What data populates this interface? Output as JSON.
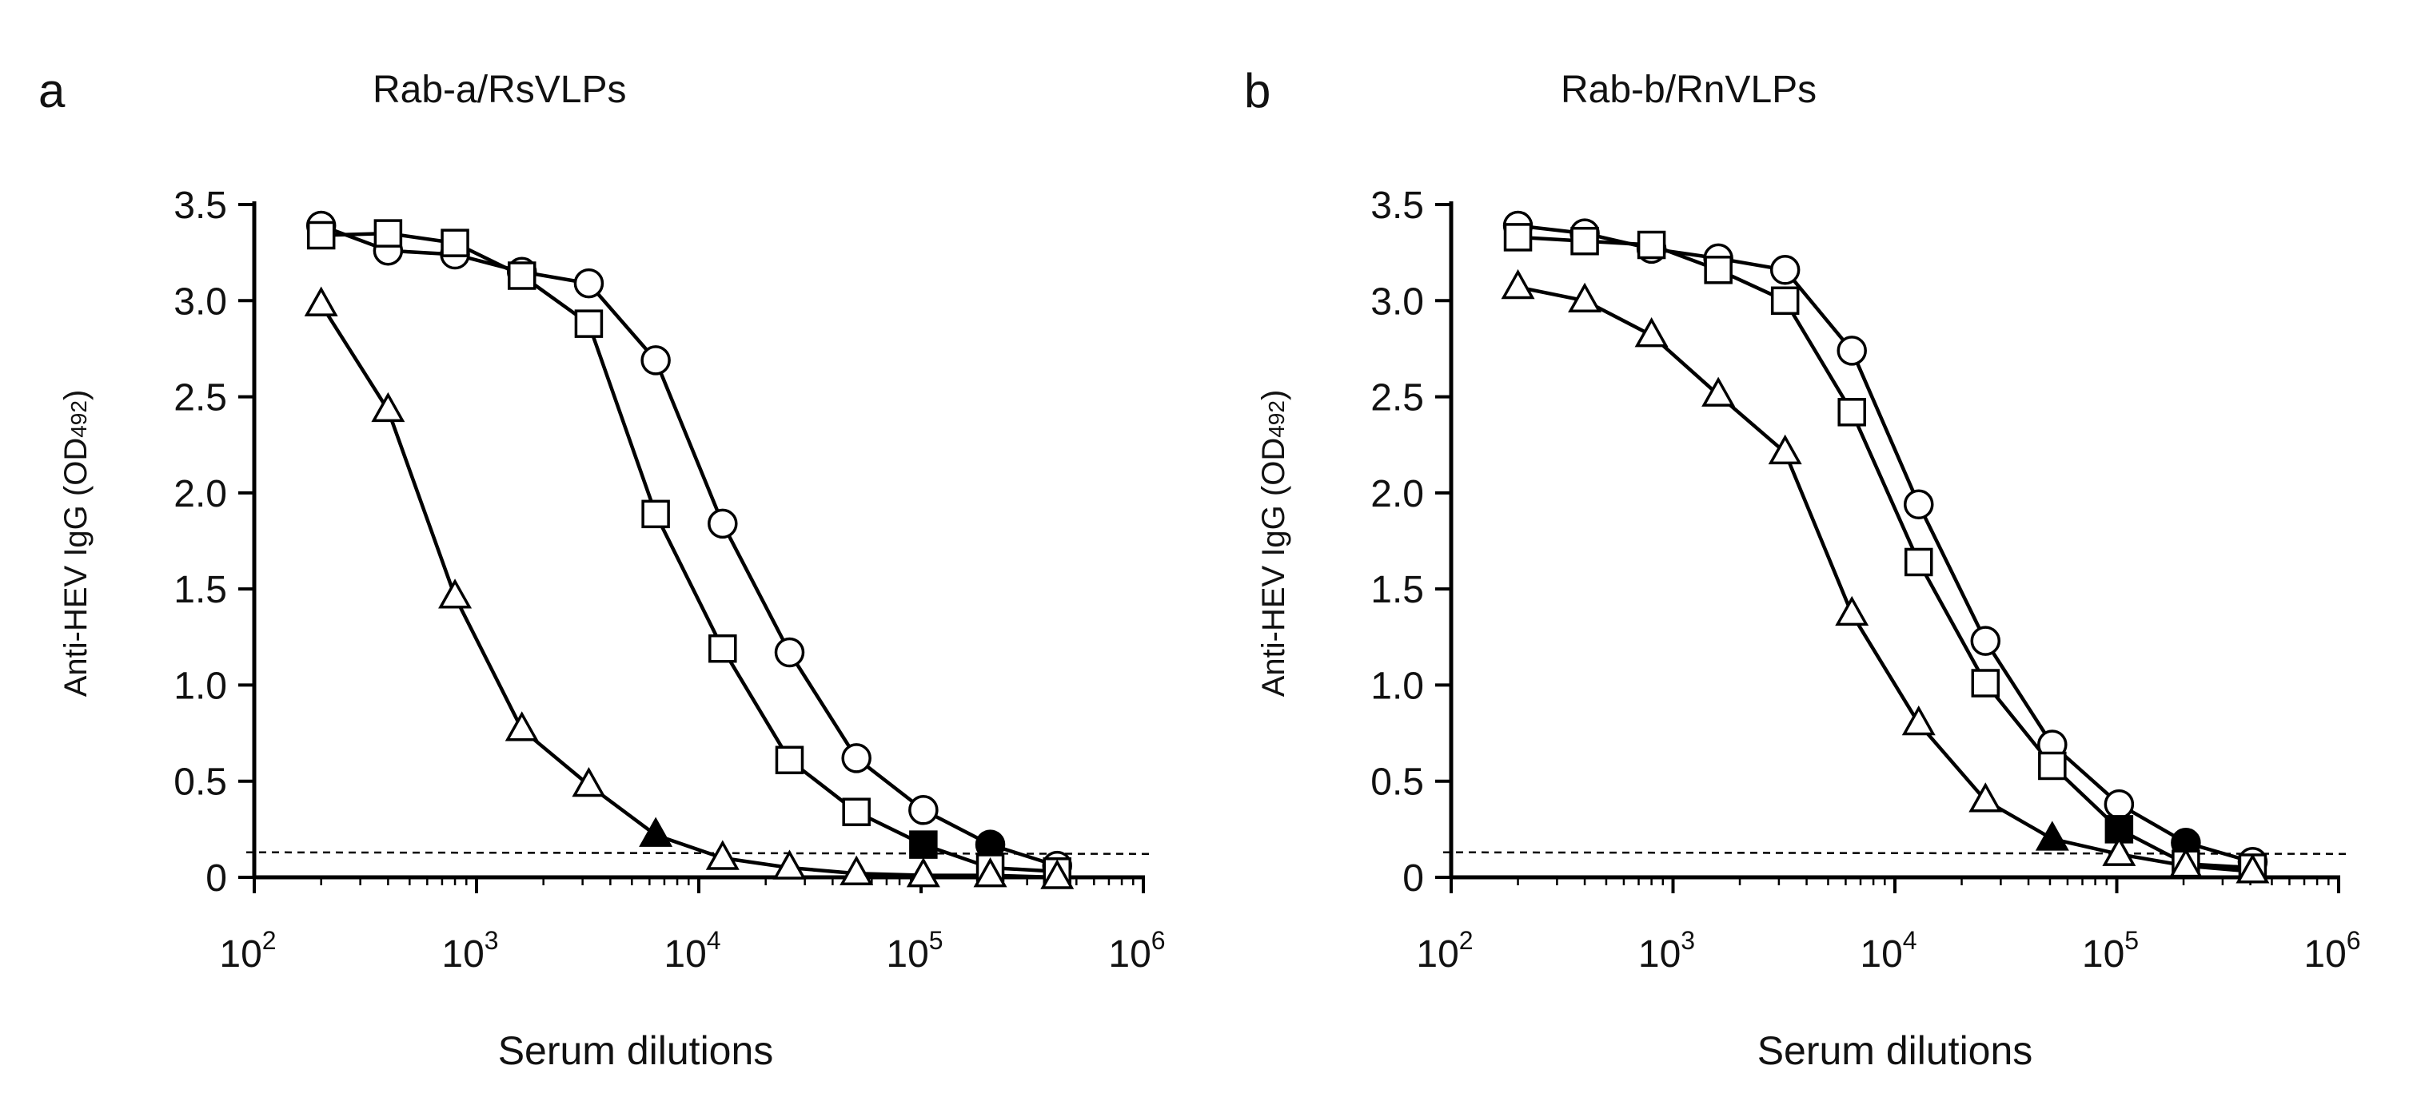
{
  "chart_data": [
    {
      "panel_label": "a",
      "title": "Rab-a/RsVLPs",
      "type": "line",
      "xscale": "log",
      "xlabel": "Serum dilutions",
      "ylabel_main": "Anti-HEV IgG (OD",
      "ylabel_sub": "492",
      "ylabel_close": ")",
      "xlim": [
        100,
        1000000
      ],
      "ylim": [
        0,
        3.5
      ],
      "yticks": [
        {
          "value": 0,
          "label": "0"
        },
        {
          "value": 0.5,
          "label": "0.5"
        },
        {
          "value": 1.0,
          "label": "1.0"
        },
        {
          "value": 1.5,
          "label": "1.5"
        },
        {
          "value": 2.0,
          "label": "2.0"
        },
        {
          "value": 2.5,
          "label": "2.5"
        },
        {
          "value": 3.0,
          "label": "3.0"
        },
        {
          "value": 3.5,
          "label": "3.5"
        }
      ],
      "xticks": [
        {
          "value": 100,
          "base": "10",
          "exp": "2"
        },
        {
          "value": 1000,
          "base": "10",
          "exp": "3"
        },
        {
          "value": 10000,
          "base": "10",
          "exp": "4"
        },
        {
          "value": 100000,
          "base": "10",
          "exp": "5"
        },
        {
          "value": 1000000,
          "base": "10",
          "exp": "6"
        }
      ],
      "cutoff": 0.13,
      "series": [
        {
          "name": "circle",
          "marker": "circle",
          "x": [
            200,
            400,
            800,
            1600,
            3200,
            6400,
            12800,
            25600,
            51200,
            102400,
            204800,
            409600
          ],
          "y": [
            3.39,
            3.26,
            3.24,
            3.15,
            3.09,
            2.69,
            1.84,
            1.17,
            0.62,
            0.35,
            0.17,
            0.06
          ],
          "filled": [
            false,
            false,
            false,
            false,
            false,
            false,
            false,
            false,
            false,
            false,
            true,
            false
          ]
        },
        {
          "name": "square",
          "marker": "square",
          "x": [
            200,
            400,
            800,
            1600,
            3200,
            6400,
            12800,
            25600,
            51200,
            102400,
            204800,
            409600
          ],
          "y": [
            3.34,
            3.35,
            3.3,
            3.13,
            2.88,
            1.89,
            1.19,
            0.61,
            0.34,
            0.17,
            0.05,
            0.03
          ],
          "filled": [
            false,
            false,
            false,
            false,
            false,
            false,
            false,
            false,
            false,
            true,
            false,
            false
          ]
        },
        {
          "name": "triangle",
          "marker": "triangle",
          "x": [
            200,
            400,
            800,
            1600,
            3200,
            6400,
            12800,
            25600,
            51200,
            102400,
            204800,
            409600
          ],
          "y": [
            2.98,
            2.43,
            1.46,
            0.77,
            0.48,
            0.22,
            0.1,
            0.05,
            0.02,
            0.01,
            0.01,
            0.0
          ],
          "filled": [
            false,
            false,
            false,
            false,
            false,
            true,
            false,
            false,
            false,
            false,
            false,
            false
          ]
        }
      ]
    },
    {
      "panel_label": "b",
      "title": "Rab-b/RnVLPs",
      "type": "line",
      "xscale": "log",
      "xlabel": "Serum dilutions",
      "ylabel_main": "Anti-HEV IgG (OD",
      "ylabel_sub": "492",
      "ylabel_close": ")",
      "xlim": [
        100,
        1000000
      ],
      "ylim": [
        0,
        3.5
      ],
      "yticks": [
        {
          "value": 0,
          "label": "0"
        },
        {
          "value": 0.5,
          "label": "0.5"
        },
        {
          "value": 1.0,
          "label": "1.0"
        },
        {
          "value": 1.5,
          "label": "1.5"
        },
        {
          "value": 2.0,
          "label": "2.0"
        },
        {
          "value": 2.5,
          "label": "2.5"
        },
        {
          "value": 3.0,
          "label": "3.0"
        },
        {
          "value": 3.5,
          "label": "3.5"
        }
      ],
      "xticks": [
        {
          "value": 100,
          "base": "10",
          "exp": "2"
        },
        {
          "value": 1000,
          "base": "10",
          "exp": "3"
        },
        {
          "value": 10000,
          "base": "10",
          "exp": "4"
        },
        {
          "value": 100000,
          "base": "10",
          "exp": "5"
        },
        {
          "value": 1000000,
          "base": "10",
          "exp": "6"
        }
      ],
      "cutoff": 0.13,
      "series": [
        {
          "name": "circle",
          "marker": "circle",
          "x": [
            200,
            400,
            800,
            1600,
            3200,
            6400,
            12800,
            25600,
            51200,
            102400,
            204800,
            409600
          ],
          "y": [
            3.39,
            3.35,
            3.27,
            3.22,
            3.16,
            2.74,
            1.94,
            1.23,
            0.69,
            0.38,
            0.18,
            0.08
          ],
          "filled": [
            false,
            false,
            false,
            false,
            false,
            false,
            false,
            false,
            false,
            false,
            true,
            false
          ]
        },
        {
          "name": "square",
          "marker": "square",
          "x": [
            200,
            400,
            800,
            1600,
            3200,
            6400,
            12800,
            25600,
            51200,
            102400,
            204800,
            409600
          ],
          "y": [
            3.33,
            3.31,
            3.29,
            3.16,
            3.0,
            2.42,
            1.64,
            1.01,
            0.58,
            0.25,
            0.07,
            0.05
          ],
          "filled": [
            false,
            false,
            false,
            false,
            false,
            false,
            false,
            false,
            false,
            true,
            false,
            false
          ]
        },
        {
          "name": "triangle",
          "marker": "triangle",
          "x": [
            200,
            400,
            800,
            1600,
            3200,
            6400,
            12800,
            25600,
            51200,
            102400,
            204800,
            409600
          ],
          "y": [
            3.07,
            3.0,
            2.82,
            2.51,
            2.21,
            1.37,
            0.8,
            0.4,
            0.2,
            0.12,
            0.06,
            0.03
          ],
          "filled": [
            false,
            false,
            false,
            false,
            false,
            false,
            false,
            false,
            true,
            false,
            false,
            false
          ]
        }
      ]
    }
  ]
}
